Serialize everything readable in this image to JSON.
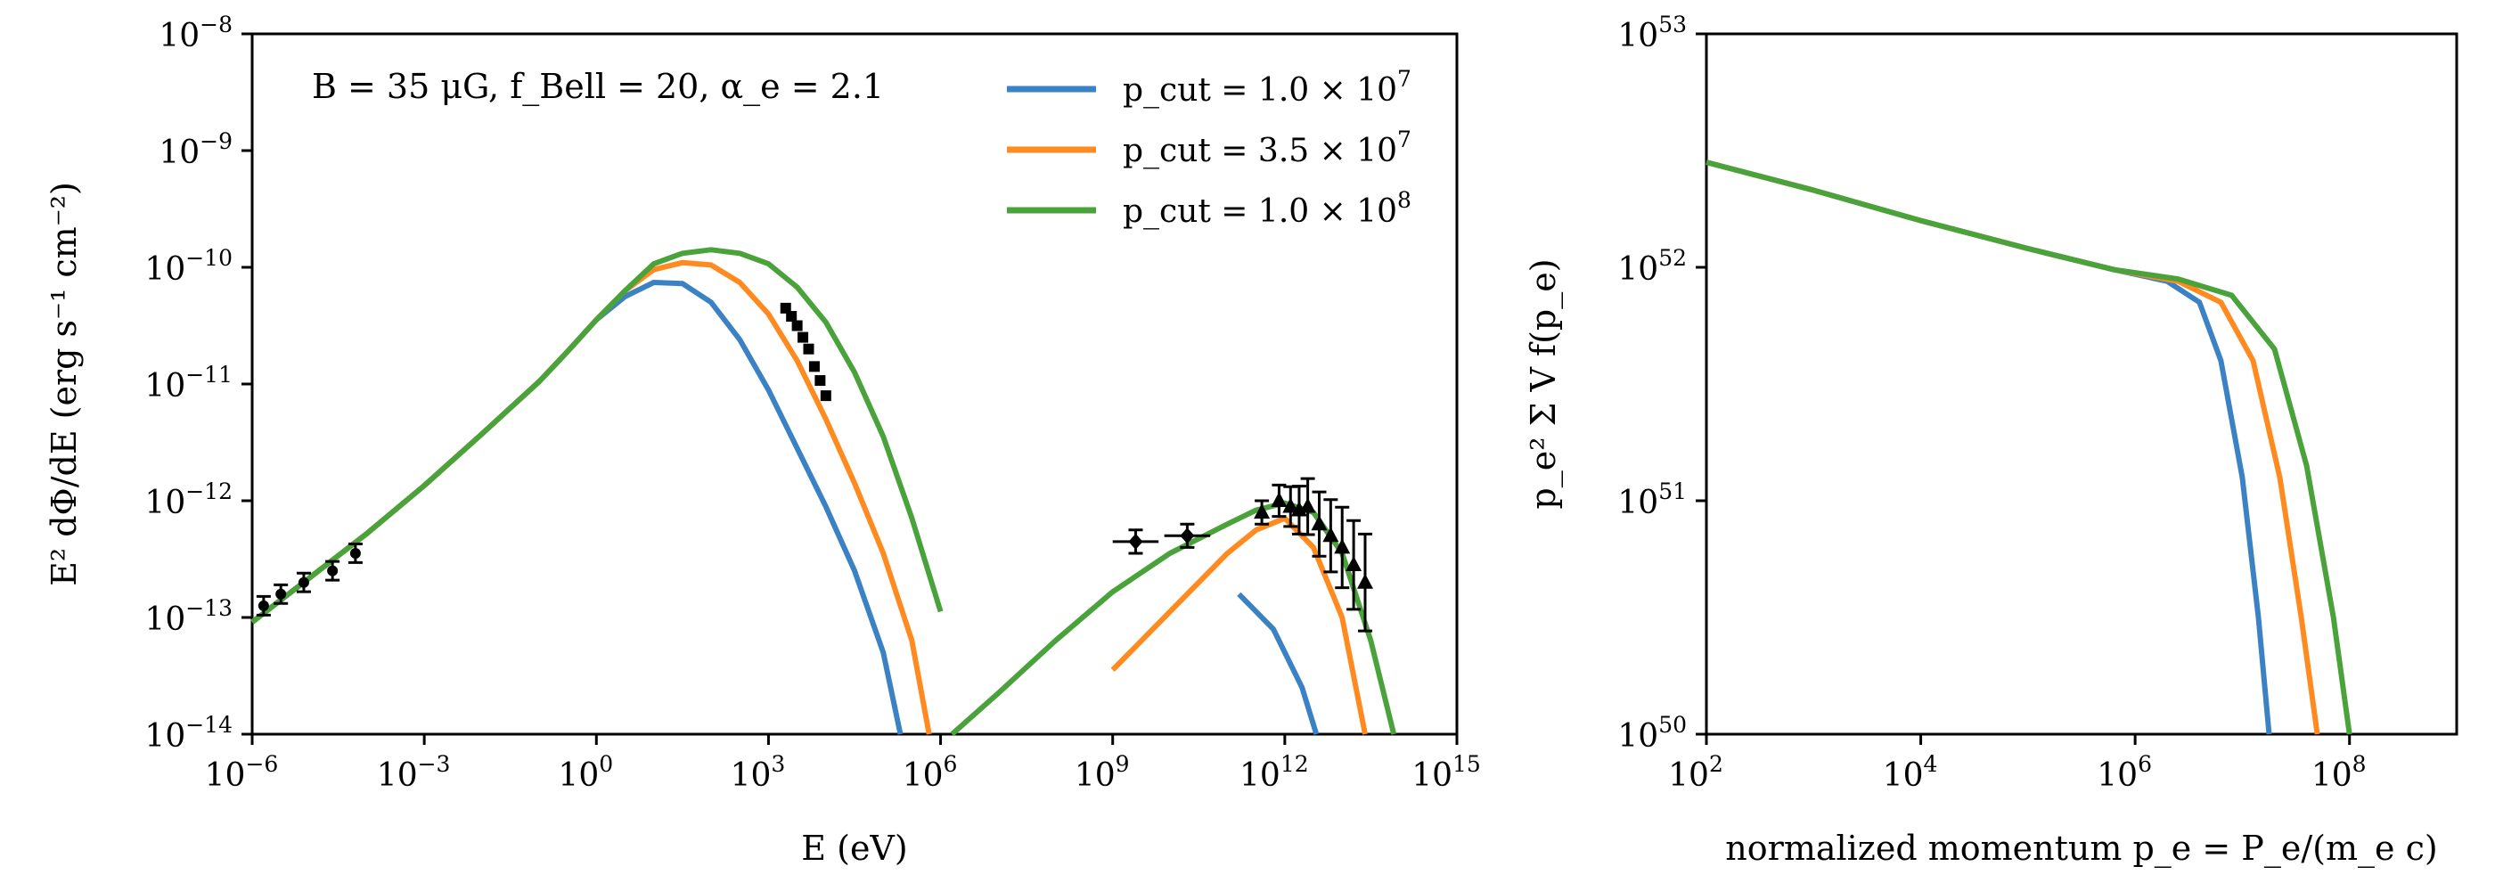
{
  "figure": {
    "colors": {
      "series": [
        "#3b82c4",
        "#ff8a1f",
        "#4aa33a"
      ],
      "data": "#000000",
      "axis": "#000000"
    }
  },
  "chart_data": [
    {
      "type": "line",
      "scale": "log-log",
      "annotation": "B = 35 μG,  f_Bell = 20,  α_e = 2.1",
      "xlabel": "E (eV)",
      "ylabel": "E² dΦ/dE (erg s⁻¹ cm⁻²)",
      "xlim_log10": [
        -6,
        15
      ],
      "ylim_log10": [
        -14,
        -8
      ],
      "x_ticks": [
        {
          "base": "10",
          "exp": "−6",
          "v": -6
        },
        {
          "base": "10",
          "exp": "−3",
          "v": -3
        },
        {
          "base": "10",
          "exp": "0",
          "v": 0
        },
        {
          "base": "10",
          "exp": "3",
          "v": 3
        },
        {
          "base": "10",
          "exp": "6",
          "v": 6
        },
        {
          "base": "10",
          "exp": "9",
          "v": 9
        },
        {
          "base": "10",
          "exp": "12",
          "v": 12
        },
        {
          "base": "10",
          "exp": "15",
          "v": 15
        }
      ],
      "y_ticks": [
        {
          "base": "10",
          "exp": "−14",
          "v": -14
        },
        {
          "base": "10",
          "exp": "−13",
          "v": -13
        },
        {
          "base": "10",
          "exp": "−12",
          "v": -12
        },
        {
          "base": "10",
          "exp": "−11",
          "v": -11
        },
        {
          "base": "10",
          "exp": "−10",
          "v": -10
        },
        {
          "base": "10",
          "exp": "−9",
          "v": -9
        },
        {
          "base": "10",
          "exp": "−8",
          "v": -8
        }
      ],
      "legend": {
        "location": "top-right",
        "entries": [
          {
            "label": "p_cut = 1.0 × 10",
            "exp": "7"
          },
          {
            "label": "p_cut = 3.5 × 10",
            "exp": "7"
          },
          {
            "label": "p_cut = 1.0 × 10",
            "exp": "8"
          }
        ]
      },
      "series": [
        {
          "name": "p_cut = 1.0 × 10^7",
          "segments": [
            [
              [
                -6,
                -13.04
              ],
              [
                -5,
                -12.66
              ],
              [
                -4,
                -12.28
              ],
              [
                -3,
                -11.87
              ],
              [
                -2,
                -11.43
              ],
              [
                -1,
                -10.98
              ],
              [
                -0.5,
                -10.72
              ],
              [
                0,
                -10.45
              ],
              [
                0.5,
                -10.25
              ],
              [
                1,
                -10.13
              ],
              [
                1.5,
                -10.14
              ],
              [
                2,
                -10.3
              ],
              [
                2.5,
                -10.62
              ],
              [
                3,
                -11.05
              ],
              [
                3.5,
                -11.55
              ],
              [
                4,
                -12.05
              ],
              [
                4.5,
                -12.6
              ],
              [
                5,
                -13.3
              ],
              [
                5.3,
                -14.0
              ]
            ],
            [
              [
                11.2,
                -12.8
              ],
              [
                11.8,
                -13.1
              ],
              [
                12.3,
                -13.6
              ],
              [
                12.55,
                -14.0
              ]
            ]
          ]
        },
        {
          "name": "p_cut = 3.5 × 10^7",
          "segments": [
            [
              [
                -6,
                -13.04
              ],
              [
                -5,
                -12.66
              ],
              [
                -4,
                -12.28
              ],
              [
                -3,
                -11.87
              ],
              [
                -2,
                -11.43
              ],
              [
                -1,
                -10.98
              ],
              [
                -0.5,
                -10.72
              ],
              [
                0,
                -10.45
              ],
              [
                0.5,
                -10.2
              ],
              [
                1,
                -10.02
              ],
              [
                1.5,
                -9.96
              ],
              [
                2,
                -9.98
              ],
              [
                2.5,
                -10.13
              ],
              [
                3,
                -10.4
              ],
              [
                3.5,
                -10.8
              ],
              [
                4,
                -11.3
              ],
              [
                4.5,
                -11.85
              ],
              [
                5,
                -12.45
              ],
              [
                5.5,
                -13.2
              ],
              [
                5.8,
                -14.0
              ]
            ],
            [
              [
                9,
                -13.45
              ],
              [
                10,
                -12.95
              ],
              [
                11,
                -12.45
              ],
              [
                11.5,
                -12.25
              ],
              [
                12,
                -12.15
              ],
              [
                12.5,
                -12.4
              ],
              [
                13,
                -13.0
              ],
              [
                13.4,
                -14.0
              ]
            ]
          ]
        },
        {
          "name": "p_cut = 1.0 × 10^8",
          "segments": [
            [
              [
                -6,
                -13.04
              ],
              [
                -5,
                -12.66
              ],
              [
                -4,
                -12.28
              ],
              [
                -3,
                -11.87
              ],
              [
                -2,
                -11.43
              ],
              [
                -1,
                -10.98
              ],
              [
                -0.5,
                -10.72
              ],
              [
                0,
                -10.45
              ],
              [
                0.5,
                -10.2
              ],
              [
                1,
                -9.97
              ],
              [
                1.5,
                -9.88
              ],
              [
                2,
                -9.85
              ],
              [
                2.5,
                -9.88
              ],
              [
                3,
                -9.97
              ],
              [
                3.5,
                -10.17
              ],
              [
                4,
                -10.47
              ],
              [
                4.5,
                -10.9
              ],
              [
                5,
                -11.45
              ],
              [
                5.5,
                -12.15
              ],
              [
                6,
                -12.95
              ]
            ],
            [
              [
                6.2,
                -14.0
              ],
              [
                7,
                -13.65
              ],
              [
                8,
                -13.2
              ],
              [
                9,
                -12.78
              ],
              [
                10,
                -12.45
              ],
              [
                11,
                -12.2
              ],
              [
                11.5,
                -12.08
              ],
              [
                12,
                -12.02
              ],
              [
                12.5,
                -12.1
              ],
              [
                13,
                -12.45
              ],
              [
                13.5,
                -13.2
              ],
              [
                13.9,
                -14.0
              ]
            ]
          ]
        }
      ],
      "data_points": {
        "radio_circles": [
          [
            -5.8,
            -12.9
          ],
          [
            -5.5,
            -12.8
          ],
          [
            -5.1,
            -12.7
          ],
          [
            -4.6,
            -12.6
          ],
          [
            -4.2,
            -12.45
          ]
        ],
        "xray_squares": [
          [
            3.3,
            -10.35
          ],
          [
            3.4,
            -10.42
          ],
          [
            3.5,
            -10.5
          ],
          [
            3.6,
            -10.6
          ],
          [
            3.7,
            -10.7
          ],
          [
            3.8,
            -10.85
          ],
          [
            3.9,
            -10.97
          ],
          [
            4.0,
            -11.1
          ]
        ],
        "gev_diamonds": [
          [
            9.4,
            -12.35
          ],
          [
            10.3,
            -12.3
          ]
        ],
        "tev_triangles": [
          [
            11.6,
            -12.1
          ],
          [
            11.9,
            -12.0
          ],
          [
            12.1,
            -12.05
          ],
          [
            12.25,
            -12.08
          ],
          [
            12.4,
            -12.05
          ],
          [
            12.6,
            -12.2
          ],
          [
            12.8,
            -12.3
          ],
          [
            13.0,
            -12.4
          ],
          [
            13.2,
            -12.55
          ],
          [
            13.4,
            -12.7
          ]
        ]
      }
    },
    {
      "type": "line",
      "scale": "log-log",
      "xlabel": "normalized momentum p_e = P_e/(m_e c)",
      "ylabel": "p_e² Σ V f(p_e)",
      "xlim_log10": [
        2,
        9
      ],
      "ylim_log10": [
        50,
        53
      ],
      "x_ticks": [
        {
          "base": "10",
          "exp": "2",
          "v": 2
        },
        {
          "base": "10",
          "exp": "4",
          "v": 4
        },
        {
          "base": "10",
          "exp": "6",
          "v": 6
        },
        {
          "base": "10",
          "exp": "8",
          "v": 8
        }
      ],
      "y_ticks": [
        {
          "base": "10",
          "exp": "50",
          "v": 50
        },
        {
          "base": "10",
          "exp": "51",
          "v": 51
        },
        {
          "base": "10",
          "exp": "52",
          "v": 52
        },
        {
          "base": "10",
          "exp": "53",
          "v": 53
        }
      ],
      "series": [
        {
          "name": "p_cut = 1.0 × 10^7",
          "points": [
            [
              2,
              52.45
            ],
            [
              3,
              52.33
            ],
            [
              4,
              52.2
            ],
            [
              5,
              52.08
            ],
            [
              5.8,
              51.99
            ],
            [
              6.3,
              51.94
            ],
            [
              6.6,
              51.85
            ],
            [
              6.8,
              51.6
            ],
            [
              7,
              51.1
            ],
            [
              7.15,
              50.5
            ],
            [
              7.25,
              50.0
            ]
          ]
        },
        {
          "name": "p_cut = 3.5 × 10^7",
          "points": [
            [
              2,
              52.45
            ],
            [
              3,
              52.33
            ],
            [
              4,
              52.2
            ],
            [
              5,
              52.08
            ],
            [
              5.8,
              51.99
            ],
            [
              6.4,
              51.94
            ],
            [
              6.8,
              51.85
            ],
            [
              7.1,
              51.6
            ],
            [
              7.35,
              51.1
            ],
            [
              7.55,
              50.5
            ],
            [
              7.7,
              50.0
            ]
          ]
        },
        {
          "name": "p_cut = 1.0 × 10^8",
          "points": [
            [
              2,
              52.45
            ],
            [
              3,
              52.33
            ],
            [
              4,
              52.2
            ],
            [
              5,
              52.08
            ],
            [
              5.8,
              51.99
            ],
            [
              6.4,
              51.95
            ],
            [
              6.9,
              51.88
            ],
            [
              7.3,
              51.65
            ],
            [
              7.6,
              51.15
            ],
            [
              7.85,
              50.5
            ],
            [
              8.0,
              50.0
            ]
          ]
        }
      ]
    }
  ]
}
